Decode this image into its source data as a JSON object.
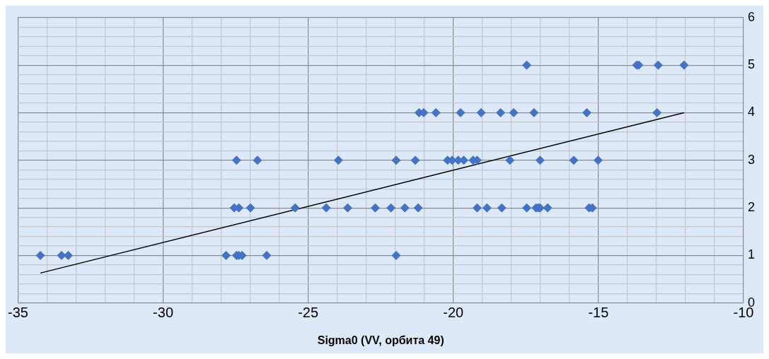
{
  "chart_data": {
    "type": "scatter",
    "xlabel": "Sigma0 (VV, орбита 49)",
    "series": [
      {
        "color": "#4472c4",
        "marker": "diamond",
        "x": [
          -34.23,
          -33.5,
          -33.27,
          -27.83,
          -27.47,
          -27.39,
          -27.28,
          -26.43,
          -21.97,
          -27.55,
          -27.39,
          -26.99,
          -25.45,
          -24.38,
          -23.64,
          -22.69,
          -22.15,
          -21.67,
          -21.21,
          -19.18,
          -18.84,
          -18.33,
          -17.47,
          -17.15,
          -17.07,
          -17.01,
          -16.75,
          -15.32,
          -15.21,
          -27.47,
          -26.75,
          -23.96,
          -21.97,
          -21.31,
          -20.2,
          -20.04,
          -19.83,
          -19.64,
          -19.32,
          -19.18,
          -18.05,
          -17.01,
          -15.85,
          -15.01,
          -21.18,
          -21.02,
          -20.6,
          -19.75,
          -19.04,
          -18.37,
          -17.92,
          -17.22,
          -15.4,
          -12.98,
          -17.47,
          -13.68,
          -13.61,
          -12.94,
          -12.05
        ],
        "values": [
          1,
          1,
          1,
          1,
          1,
          1,
          1,
          1,
          1,
          2,
          2,
          2,
          2,
          2,
          2,
          2,
          2,
          2,
          2,
          2,
          2,
          2,
          2,
          2,
          2,
          2,
          2,
          2,
          2,
          3,
          3,
          3,
          3,
          3,
          3,
          3,
          3,
          3,
          3,
          3,
          3,
          3,
          3,
          3,
          4,
          4,
          4,
          4,
          4,
          4,
          4,
          4,
          4,
          4,
          5,
          5,
          5,
          5,
          5
        ]
      },
      {
        "type": "line",
        "color": "#000000",
        "marker": "none",
        "line_style": "solid",
        "x": [
          -34.23,
          -12.05
        ],
        "values": [
          0.63,
          4.0
        ]
      }
    ],
    "xlim": [
      -35,
      -10
    ],
    "xticks": [
      -35,
      {
        "value": -34,
        "label": null
      },
      {
        "value": -33,
        "label": null
      },
      {
        "value": -32,
        "label": null
      },
      {
        "value": -31,
        "label": null
      },
      -30,
      {
        "value": -29,
        "label": null
      },
      {
        "value": -28,
        "label": null
      },
      {
        "value": -27,
        "label": null
      },
      {
        "value": -26,
        "label": null
      },
      -25,
      {
        "value": -24,
        "label": null
      },
      {
        "value": -23,
        "label": null
      },
      {
        "value": -22,
        "label": null
      },
      {
        "value": -21,
        "label": null
      },
      -20,
      {
        "value": -19,
        "label": null
      },
      {
        "value": -18,
        "label": null
      },
      {
        "value": -17,
        "label": null
      },
      {
        "value": -16,
        "label": null
      },
      -15,
      {
        "value": -14,
        "label": null
      },
      {
        "value": -13,
        "label": null
      },
      {
        "value": -12,
        "label": null
      },
      {
        "value": -11,
        "label": null
      },
      -10
    ],
    "ylim": [
      0,
      6
    ],
    "yticks": [
      0,
      {
        "value": 0.2,
        "label": null
      },
      {
        "value": 0.4,
        "label": null
      },
      {
        "value": 0.6,
        "label": null
      },
      {
        "value": 0.8,
        "label": null
      },
      1,
      {
        "value": 1.2,
        "label": null
      },
      {
        "value": 1.4,
        "label": null
      },
      {
        "value": 1.6,
        "label": null
      },
      {
        "value": 1.8,
        "label": null
      },
      2,
      {
        "value": 2.2,
        "label": null
      },
      {
        "value": 2.4,
        "label": null
      },
      {
        "value": 2.6,
        "label": null
      },
      {
        "value": 2.8,
        "label": null
      },
      3,
      {
        "value": 3.2,
        "label": null
      },
      {
        "value": 3.4,
        "label": null
      },
      {
        "value": 3.6,
        "label": null
      },
      {
        "value": 3.8,
        "label": null
      },
      4,
      {
        "value": 4.2,
        "label": null
      },
      {
        "value": 4.4,
        "label": null
      },
      {
        "value": 4.6,
        "label": null
      },
      {
        "value": 4.8,
        "label": null
      },
      5,
      {
        "value": 5.2,
        "label": null
      },
      {
        "value": 5.4,
        "label": null
      },
      {
        "value": 5.6,
        "label": null
      },
      {
        "value": 5.8,
        "label": null
      },
      6
    ],
    "grid": true,
    "legend": false
  }
}
